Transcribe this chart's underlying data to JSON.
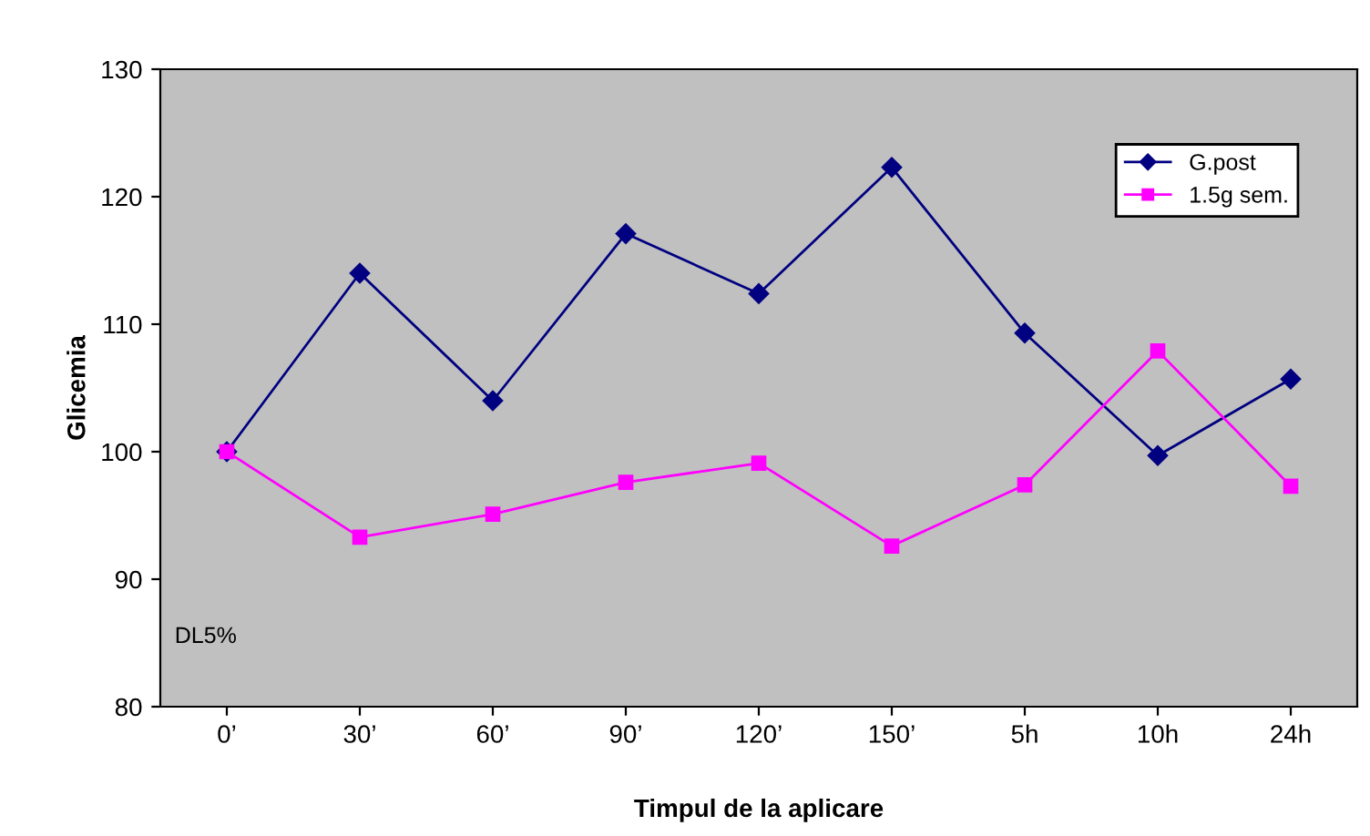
{
  "chart_data": {
    "type": "line",
    "xlabel": "Timpul de la aplicare",
    "ylabel": "Glicemia",
    "categories": [
      "0’",
      "30’",
      "60’",
      "90’",
      "120’",
      "150’",
      "5h",
      "10h",
      "24h"
    ],
    "series": [
      {
        "name": "G.post",
        "color": "#000080",
        "marker": "diamond",
        "values": [
          100,
          114,
          104,
          117.1,
          112.4,
          122.3,
          109.3,
          99.7,
          105.7
        ]
      },
      {
        "name": "1.5g sem.",
        "color": "#ff00ff",
        "marker": "square",
        "values": [
          100,
          93.3,
          95.1,
          97.6,
          99.1,
          92.6,
          97.4,
          107.9,
          97.3
        ]
      }
    ],
    "ylim": [
      80,
      130
    ],
    "yticks": [
      80,
      90,
      100,
      110,
      120,
      130
    ],
    "grid": false,
    "legend": "top right",
    "annotations": [
      "DL5%"
    ]
  }
}
